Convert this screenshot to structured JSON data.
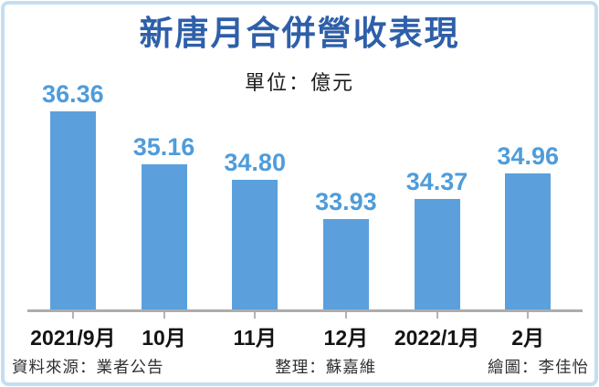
{
  "chart_data": {
    "type": "bar",
    "title": "新唐月合併營收表現",
    "unit_label": "單位：億元",
    "categories": [
      "2021/9月",
      "10月",
      "11月",
      "12月",
      "2022/1月",
      "2月"
    ],
    "values": [
      36.36,
      35.16,
      34.8,
      33.93,
      34.37,
      34.96
    ],
    "value_labels": [
      "36.36",
      "35.16",
      "34.80",
      "33.93",
      "34.37",
      "34.96"
    ],
    "ylim": [
      31.88,
      36.6
    ],
    "xlabel": "",
    "ylabel": "",
    "grid": false,
    "legend": false,
    "bar_color": "#5ba0dc",
    "value_label_color": "#4f9cda",
    "title_color": "#2e5fa9",
    "axis_color": "#acacac",
    "frame_border_color": "#c4def1"
  },
  "footer": {
    "source": "資料來源：業者公告",
    "editor": "整理：蘇嘉維",
    "illustrator": "繪圖：李佳怡"
  }
}
